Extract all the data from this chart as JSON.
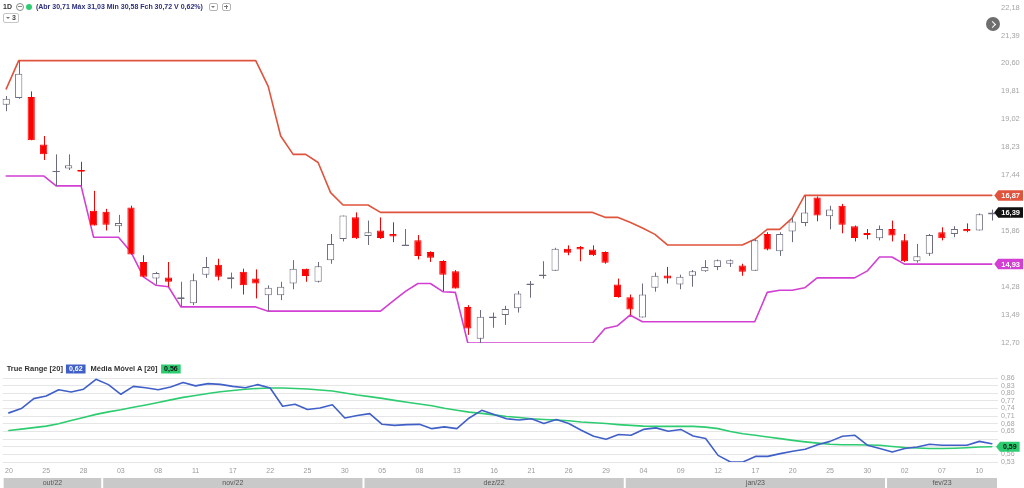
{
  "chart_data": [
    {
      "type": "candlestick",
      "title": "1D",
      "categories": [
        "20",
        null,
        null,
        "25",
        null,
        null,
        "28",
        null,
        null,
        "03",
        null,
        null,
        "08",
        null,
        null,
        "11",
        null,
        null,
        "17",
        null,
        null,
        "22",
        null,
        null,
        "25",
        null,
        null,
        "30",
        null,
        null,
        "05",
        null,
        null,
        "08",
        null,
        null,
        "13",
        null,
        null,
        "16",
        null,
        null,
        "21",
        null,
        null,
        "26",
        null,
        null,
        "29",
        null,
        null,
        "04",
        null,
        null,
        "09",
        null,
        null,
        "12",
        null,
        null,
        "17",
        null,
        null,
        "20",
        null,
        null,
        "25",
        null,
        null,
        "30",
        null,
        null,
        "02",
        null,
        null,
        "07",
        null,
        null,
        "10",
        null
      ],
      "ohlc": [
        [
          19.43,
          19.68,
          19.25,
          19.6
        ],
        [
          19.62,
          20.68,
          19.6,
          20.31
        ],
        [
          19.65,
          19.81,
          18.43,
          18.43
        ],
        [
          18.31,
          18.55,
          17.87,
          18.03
        ],
        [
          17.55,
          18.03,
          17.14,
          17.56
        ],
        [
          17.63,
          18.03,
          17.59,
          17.72
        ],
        [
          17.58,
          17.82,
          17.14,
          17.54
        ],
        [
          16.44,
          17.0,
          16.02,
          16.02
        ],
        [
          16.41,
          16.49,
          15.88,
          16.04
        ],
        [
          16.0,
          16.32,
          15.83,
          16.09
        ],
        [
          16.53,
          16.58,
          15.2,
          15.2
        ],
        [
          14.99,
          15.18,
          14.57,
          14.57
        ],
        [
          14.52,
          14.71,
          14.35,
          14.68
        ],
        [
          14.55,
          14.99,
          14.29,
          14.43
        ],
        [
          13.98,
          14.43,
          13.72,
          14.0
        ],
        [
          13.82,
          14.66,
          13.77,
          14.47
        ],
        [
          14.63,
          15.13,
          14.54,
          14.85
        ],
        [
          14.91,
          15.08,
          14.47,
          14.57
        ],
        [
          14.5,
          14.69,
          14.24,
          14.56
        ],
        [
          14.71,
          14.8,
          14.07,
          14.33
        ],
        [
          14.52,
          14.78,
          13.96,
          14.38
        ],
        [
          14.05,
          14.33,
          13.6,
          14.26
        ],
        [
          14.05,
          14.43,
          13.91,
          14.29
        ],
        [
          14.38,
          15.04,
          14.22,
          14.8
        ],
        [
          14.8,
          14.8,
          14.43,
          14.59
        ],
        [
          14.43,
          14.99,
          14.41,
          14.87
        ],
        [
          15.04,
          15.78,
          14.94,
          15.5
        ],
        [
          15.64,
          16.3,
          15.57,
          16.3
        ],
        [
          16.25,
          16.39,
          15.64,
          15.66
        ],
        [
          15.72,
          16.16,
          15.47,
          15.83
        ],
        [
          15.88,
          16.25,
          15.64,
          15.67
        ],
        [
          15.78,
          16.11,
          15.55,
          15.71
        ],
        [
          15.47,
          15.92,
          15.46,
          15.48
        ],
        [
          15.6,
          15.75,
          15.06,
          15.16
        ],
        [
          15.27,
          15.29,
          14.99,
          15.11
        ],
        [
          15.02,
          15.04,
          14.16,
          14.63
        ],
        [
          14.73,
          14.76,
          14.24,
          14.24
        ],
        [
          13.72,
          13.77,
          12.93,
          13.11
        ],
        [
          12.82,
          13.63,
          12.7,
          13.44
        ],
        [
          13.43,
          13.56,
          13.13,
          13.45
        ],
        [
          13.49,
          13.75,
          13.21,
          13.66
        ],
        [
          13.68,
          14.17,
          13.56,
          14.1
        ],
        [
          14.37,
          14.45,
          13.98,
          14.38
        ],
        [
          14.63,
          15.01,
          14.52,
          14.64
        ],
        [
          14.74,
          15.39,
          14.74,
          15.36
        ],
        [
          15.36,
          15.46,
          15.18,
          15.25
        ],
        [
          15.41,
          15.44,
          15.01,
          15.34
        ],
        [
          15.34,
          15.46,
          15.16,
          15.18
        ],
        [
          15.27,
          15.29,
          14.94,
          14.97
        ],
        [
          14.35,
          14.52,
          13.98,
          14.0
        ],
        [
          13.99,
          14.07,
          13.49,
          13.65
        ],
        [
          13.42,
          14.38,
          13.42,
          14.07
        ],
        [
          14.26,
          14.69,
          14.15,
          14.6
        ],
        [
          14.61,
          14.85,
          14.38,
          14.52
        ],
        [
          14.35,
          14.63,
          14.22,
          14.57
        ],
        [
          14.6,
          14.76,
          14.29,
          14.73
        ],
        [
          14.73,
          15.04,
          14.71,
          14.85
        ],
        [
          14.85,
          15.06,
          14.76,
          15.04
        ],
        [
          14.94,
          15.06,
          14.85,
          15.04
        ],
        [
          14.89,
          14.94,
          14.6,
          14.71
        ],
        [
          14.74,
          15.63,
          14.74,
          15.6
        ],
        [
          15.78,
          15.83,
          15.32,
          15.34
        ],
        [
          15.29,
          15.83,
          15.16,
          15.78
        ],
        [
          15.85,
          16.25,
          15.55,
          16.13
        ],
        [
          16.09,
          16.87,
          16.0,
          16.39
        ],
        [
          16.81,
          16.84,
          16.14,
          16.3
        ],
        [
          16.28,
          16.58,
          15.91,
          16.47
        ],
        [
          16.58,
          16.63,
          15.8,
          16.04
        ],
        [
          16.0,
          16.02,
          15.57,
          15.67
        ],
        [
          15.81,
          15.92,
          15.63,
          15.75
        ],
        [
          15.66,
          16.02,
          15.6,
          15.92
        ],
        [
          15.92,
          16.16,
          15.57,
          15.74
        ],
        [
          15.6,
          15.78,
          14.99,
          15.01
        ],
        [
          15.01,
          15.5,
          14.97,
          15.15
        ],
        [
          15.22,
          15.78,
          15.16,
          15.75
        ],
        [
          15.83,
          15.97,
          15.6,
          15.66
        ],
        [
          15.78,
          16.0,
          15.69,
          15.92
        ],
        [
          15.92,
          16.08,
          15.83,
          15.86
        ],
        [
          15.88,
          16.36,
          15.88,
          16.34
        ],
        [
          16.33,
          16.47,
          16.16,
          16.39
        ]
      ],
      "colors": [
        "#6c6c7c",
        "#6c6c7c",
        "#ff0000",
        "#ff0000",
        "#6c6c7c",
        "#6c6c7c",
        "#ff0000",
        "#ff0000",
        "#ff0000",
        "#6c6c7c",
        "#ff0000",
        "#ff0000",
        "#6c6c7c",
        "#ff0000",
        "#6c6c7c",
        "#6c6c7c",
        "#6c6c7c",
        "#ff0000",
        "#6c6c7c",
        "#ff0000",
        "#ff0000",
        "#6c6c7c",
        "#6c6c7c",
        "#6c6c7c",
        "#ff0000",
        "#6c6c7c",
        "#6c6c7c",
        "#6c6c7c",
        "#ff0000",
        "#6c6c7c",
        "#ff0000",
        "#ff0000",
        "#6c6c7c",
        "#ff0000",
        "#ff0000",
        "#ff0000",
        "#ff0000",
        "#ff0000",
        "#6c6c7c",
        "#6c6c7c",
        "#6c6c7c",
        "#6c6c7c",
        "#6c6c7c",
        "#6c6c7c",
        "#6c6c7c",
        "#ff0000",
        "#ff0000",
        "#ff0000",
        "#ff0000",
        "#ff0000",
        "#ff0000",
        "#6c6c7c",
        "#6c6c7c",
        "#ff0000",
        "#6c6c7c",
        "#6c6c7c",
        "#6c6c7c",
        "#6c6c7c",
        "#6c6c7c",
        "#ff0000",
        "#6c6c7c",
        "#ff0000",
        "#6c6c7c",
        "#6c6c7c",
        "#6c6c7c",
        "#ff0000",
        "#6c6c7c",
        "#ff0000",
        "#ff0000",
        "#ff0000",
        "#6c6c7c",
        "#ff0000",
        "#ff0000",
        "#6c6c7c",
        "#6c6c7c",
        "#ff0000",
        "#6c6c7c",
        "#ff0000",
        "#6c6c7c",
        "#6c6c7c"
      ],
      "value_labels": [
        null,
        null,
        null,
        null,
        null,
        null,
        null,
        null,
        null,
        null,
        null,
        null,
        null,
        null,
        null,
        null,
        null,
        null,
        null,
        null,
        null,
        null,
        null,
        null,
        null,
        null,
        null,
        null,
        null,
        null,
        null,
        null,
        null,
        null,
        null,
        null,
        null,
        null,
        null,
        null,
        null,
        null,
        null,
        null,
        null,
        null,
        null,
        null,
        null,
        null,
        null,
        null,
        null,
        null,
        null,
        null,
        null,
        null,
        null,
        null,
        null,
        null,
        null,
        null,
        null,
        null,
        null,
        null,
        null,
        null,
        null,
        null,
        null,
        null,
        null,
        null,
        null,
        null,
        null,
        "16,39"
      ],
      "series": [
        {
          "type": "line",
          "color": "#e0533d",
          "values": [
            19.88,
            20.68,
            20.68,
            20.68,
            20.68,
            20.68,
            20.68,
            20.68,
            20.68,
            20.68,
            20.68,
            20.68,
            20.68,
            20.68,
            20.68,
            20.68,
            20.68,
            20.68,
            20.68,
            20.68,
            20.68,
            19.95,
            18.55,
            18.03,
            18.03,
            17.8,
            16.95,
            16.6,
            16.6,
            16.6,
            16.39,
            16.39,
            16.39,
            16.39,
            16.39,
            16.39,
            16.39,
            16.39,
            16.39,
            16.39,
            16.39,
            16.39,
            16.39,
            16.39,
            16.39,
            16.39,
            16.39,
            16.39,
            16.25,
            16.25,
            16.11,
            15.95,
            15.77,
            15.47,
            15.47,
            15.47,
            15.47,
            15.47,
            15.47,
            15.47,
            15.63,
            15.91,
            15.91,
            16.23,
            16.87,
            16.87,
            16.87,
            16.87,
            16.87,
            16.87,
            16.87,
            16.87,
            16.87,
            16.87,
            16.87,
            16.87,
            16.87,
            16.87,
            16.87,
            16.87
          ],
          "value_labels": [
            null,
            null,
            null,
            null,
            null,
            null,
            null,
            null,
            null,
            null,
            null,
            null,
            null,
            null,
            null,
            null,
            null,
            null,
            null,
            null,
            null,
            null,
            null,
            null,
            null,
            null,
            null,
            null,
            null,
            null,
            null,
            null,
            null,
            null,
            null,
            null,
            null,
            null,
            null,
            null,
            null,
            null,
            null,
            null,
            null,
            null,
            null,
            null,
            null,
            null,
            null,
            null,
            null,
            null,
            null,
            null,
            null,
            null,
            null,
            null,
            null,
            null,
            null,
            null,
            null,
            null,
            null,
            null,
            null,
            null,
            null,
            null,
            null,
            null,
            null,
            null,
            null,
            null,
            null,
            "16,87"
          ]
        },
        {
          "type": "line",
          "color": "#d23fd2",
          "values": [
            17.42,
            17.42,
            17.42,
            17.42,
            17.14,
            17.14,
            17.14,
            15.69,
            15.69,
            15.69,
            15.27,
            14.57,
            14.33,
            14.29,
            13.72,
            13.72,
            13.72,
            13.72,
            13.72,
            13.72,
            13.72,
            13.6,
            13.6,
            13.6,
            13.6,
            13.6,
            13.6,
            13.6,
            13.6,
            13.6,
            13.6,
            13.88,
            14.16,
            14.38,
            14.38,
            14.15,
            14.13,
            12.7,
            12.7,
            12.7,
            12.7,
            12.7,
            12.7,
            12.7,
            12.7,
            12.7,
            12.7,
            12.7,
            13.11,
            13.19,
            13.49,
            13.3,
            13.3,
            13.3,
            13.3,
            13.3,
            13.3,
            13.3,
            13.3,
            13.3,
            13.3,
            14.13,
            14.19,
            14.19,
            14.26,
            14.54,
            14.54,
            14.54,
            14.54,
            14.73,
            15.13,
            15.13,
            14.93,
            14.93,
            14.93,
            14.93,
            14.93,
            14.93,
            14.93,
            14.93
          ],
          "value_labels": [
            null,
            null,
            null,
            null,
            null,
            null,
            null,
            null,
            null,
            null,
            null,
            null,
            null,
            null,
            null,
            null,
            null,
            null,
            null,
            null,
            null,
            null,
            null,
            null,
            null,
            null,
            null,
            null,
            null,
            null,
            null,
            null,
            null,
            null,
            null,
            null,
            null,
            null,
            null,
            null,
            null,
            null,
            null,
            null,
            null,
            null,
            null,
            null,
            null,
            null,
            null,
            null,
            null,
            null,
            null,
            null,
            null,
            null,
            null,
            null,
            null,
            null,
            null,
            null,
            null,
            null,
            null,
            null,
            null,
            null,
            null,
            null,
            null,
            null,
            null,
            null,
            null,
            null,
            null,
            "14,93"
          ]
        }
      ],
      "ylim": [
        12.7,
        22.18
      ],
      "yticks": [
        {
          "value": 12.7,
          "label": "12,70"
        },
        {
          "value": 13.49,
          "label": "13,49"
        },
        {
          "value": 14.28,
          "label": "14,28"
        },
        {
          "value": 15.86,
          "label": "15,86"
        },
        {
          "value": 17.44,
          "label": "17,44"
        },
        {
          "value": 18.23,
          "label": "18,23"
        },
        {
          "value": 19.02,
          "label": "19,02"
        },
        {
          "value": 19.81,
          "label": "19,81"
        },
        {
          "value": 20.6,
          "label": "20,60"
        },
        {
          "value": 21.39,
          "label": "21,39"
        },
        {
          "value": 22.18,
          "label": "22,18"
        }
      ],
      "tick_labels": "y",
      "annotations": [
        "(Abr 30,71 Máx 31,03 Min 30,58 Fch 30,72 V 0,62%)",
        "3"
      ]
    },
    {
      "type": "line",
      "categories": [
        "20",
        null,
        null,
        "25",
        null,
        null,
        "28",
        null,
        null,
        "03",
        null,
        null,
        "08",
        null,
        null,
        "11",
        null,
        null,
        "17",
        null,
        null,
        "22",
        null,
        null,
        "25",
        null,
        null,
        "30",
        null,
        null,
        "05",
        null,
        null,
        "08",
        null,
        null,
        "13",
        null,
        null,
        "16",
        null,
        null,
        "21",
        null,
        null,
        "26",
        null,
        null,
        "29",
        null,
        null,
        "04",
        null,
        null,
        "09",
        null,
        null,
        "12",
        null,
        null,
        "17",
        null,
        null,
        "20",
        null,
        null,
        "25",
        null,
        null,
        "30",
        null,
        null,
        "02",
        null,
        null,
        "07",
        null,
        null,
        "10",
        null
      ],
      "series": [
        {
          "name": "True Range [20]",
          "color": "#4060c8",
          "values": [
            0.723,
            0.74,
            0.779,
            0.789,
            0.814,
            0.805,
            0.816,
            0.855,
            0.834,
            0.796,
            0.827,
            0.822,
            0.814,
            0.825,
            0.842,
            0.829,
            0.838,
            0.835,
            0.827,
            0.822,
            0.834,
            0.821,
            0.749,
            0.757,
            0.736,
            0.742,
            0.755,
            0.703,
            0.713,
            0.72,
            0.678,
            0.674,
            0.677,
            0.678,
            0.661,
            0.668,
            0.661,
            0.703,
            0.733,
            0.717,
            0.7,
            0.695,
            0.7,
            0.681,
            0.697,
            0.681,
            0.655,
            0.631,
            0.619,
            0.638,
            0.635,
            0.658,
            0.664,
            0.651,
            0.658,
            0.632,
            0.622,
            0.556,
            0.53,
            0.53,
            0.552,
            0.552,
            0.563,
            0.572,
            0.58,
            0.598,
            0.611,
            0.631,
            0.635,
            0.596,
            0.583,
            0.569,
            0.583,
            0.589,
            0.6,
            0.596,
            0.596,
            0.596,
            0.611,
            0.602
          ]
        },
        {
          "name": "Média Móvel A [20]",
          "color": "#2dcc70",
          "values": [
            0.654,
            0.659,
            0.665,
            0.671,
            0.68,
            0.693,
            0.705,
            0.717,
            0.727,
            0.735,
            0.745,
            0.754,
            0.764,
            0.774,
            0.784,
            0.791,
            0.799,
            0.806,
            0.811,
            0.816,
            0.819,
            0.821,
            0.821,
            0.819,
            0.817,
            0.813,
            0.809,
            0.801,
            0.793,
            0.787,
            0.78,
            0.772,
            0.765,
            0.758,
            0.751,
            0.741,
            0.733,
            0.726,
            0.721,
            0.715,
            0.709,
            0.705,
            0.7,
            0.697,
            0.695,
            0.692,
            0.687,
            0.684,
            0.681,
            0.677,
            0.674,
            0.671,
            0.67,
            0.67,
            0.67,
            0.67,
            0.667,
            0.661,
            0.65,
            0.641,
            0.635,
            0.628,
            0.622,
            0.615,
            0.609,
            0.604,
            0.6,
            0.598,
            0.598,
            0.597,
            0.596,
            0.591,
            0.587,
            0.585,
            0.583,
            0.583,
            0.584,
            0.586,
            0.589,
            0.59
          ],
          "value_labels": [
            null,
            null,
            null,
            null,
            null,
            null,
            null,
            null,
            null,
            null,
            null,
            null,
            null,
            null,
            null,
            null,
            null,
            null,
            null,
            null,
            null,
            null,
            null,
            null,
            null,
            null,
            null,
            null,
            null,
            null,
            null,
            null,
            null,
            null,
            null,
            null,
            null,
            null,
            null,
            null,
            null,
            null,
            null,
            null,
            null,
            null,
            null,
            null,
            null,
            null,
            null,
            null,
            null,
            null,
            null,
            null,
            null,
            null,
            null,
            null,
            null,
            null,
            null,
            null,
            null,
            null,
            null,
            null,
            null,
            null,
            null,
            null,
            null,
            null,
            null,
            null,
            null,
            null,
            null,
            "0,59"
          ]
        }
      ],
      "ylim": [
        0.53,
        0.86
      ],
      "yticks": [
        {
          "value": 0.53,
          "label": "0,53"
        },
        {
          "value": 0.56,
          "label": "0,56"
        },
        {
          "value": 0.59,
          "label": null
        },
        {
          "value": 0.62,
          "label": null
        },
        {
          "value": 0.65,
          "label": "0,65"
        },
        {
          "value": 0.68,
          "label": "0,68"
        },
        {
          "value": 0.71,
          "label": "0,71"
        },
        {
          "value": 0.74,
          "label": "0,74"
        },
        {
          "value": 0.77,
          "label": "0,77"
        },
        {
          "value": 0.8,
          "label": "0,80"
        },
        {
          "value": 0.83,
          "label": "0,83"
        },
        {
          "value": 0.86,
          "label": "0,86"
        }
      ],
      "grid": "y",
      "legend": "top left",
      "annotations": [
        "0,62",
        "0,56",
        "out/22",
        "nov/22",
        "dez/22",
        "jan/23",
        "fev/23"
      ]
    }
  ]
}
